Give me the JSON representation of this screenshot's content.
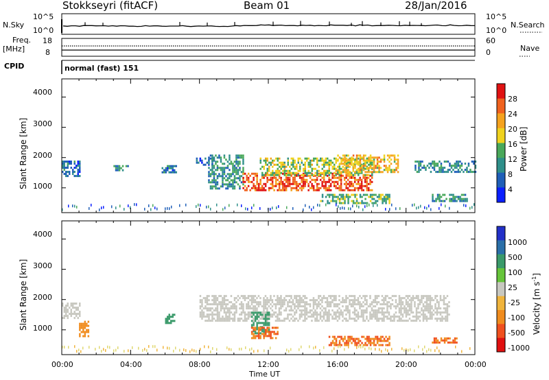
{
  "header": {
    "station": "Stokkseyri (fitACF)",
    "beam": "Beam 01",
    "date": "28/Jan/2016"
  },
  "strips": {
    "nsky_label": "N.Sky",
    "nsky_ticks": [
      "10^5",
      "10^0"
    ],
    "nsearch_label": "N.Search",
    "nsearch_ticks": [
      "10^5",
      "10^0"
    ],
    "freq_label_1": "Freq.",
    "freq_label_2": "[MHz]",
    "freq_ticks": [
      "18",
      "8"
    ],
    "nave_label": "Nave",
    "nave_ticks": [
      "60",
      "0"
    ],
    "cpid_label": "CPID",
    "cpid_value": "normal (fast) 151"
  },
  "axes": {
    "xlabel": "Time UT",
    "xticks": [
      "00:00",
      "04:00",
      "08:00",
      "12:00",
      "16:00",
      "20:00",
      "00:00"
    ],
    "ylabel": "Slant Range [km]",
    "yticks": [
      "4000",
      "3000",
      "2000",
      "1000"
    ]
  },
  "colorbars": {
    "power": {
      "label": "Power [dB]",
      "ticks": [
        "28",
        "24",
        "20",
        "16",
        "12",
        "8",
        "4"
      ],
      "colors": [
        "#0a1fff",
        "#1f5fb8",
        "#2f8f8a",
        "#49a85a",
        "#f0d21e",
        "#f5a21e",
        "#f0621e",
        "#e01212"
      ]
    },
    "velocity": {
      "label": "Velocity [m s",
      "label_sup": "-1",
      "label_end": "]",
      "ticks": [
        "1000",
        "500",
        "100",
        "25",
        "-25",
        "-100",
        "-500",
        "-1000"
      ],
      "colors": [
        "#2230c8",
        "#2a6fa8",
        "#3a9a6a",
        "#66c43a",
        "#c8c8c0",
        "#f0b43c",
        "#f08c1e",
        "#f0501e",
        "#e01010"
      ]
    }
  },
  "chart_data": [
    {
      "type": "heatmap",
      "title": "Power",
      "xlabel": "Time UT",
      "ylabel": "Slant Range [km]",
      "xlim": [
        0,
        24
      ],
      "ylim": [
        180,
        4600
      ],
      "zlim": [
        0,
        30
      ],
      "regions": [
        {
          "t": [
            0.0,
            1.0
          ],
          "r": [
            1400,
            1900
          ],
          "power": 8
        },
        {
          "t": [
            3.0,
            3.8
          ],
          "r": [
            1550,
            1750
          ],
          "power": 9
        },
        {
          "t": [
            5.8,
            6.6
          ],
          "r": [
            1500,
            1750
          ],
          "power": 8
        },
        {
          "t": [
            7.8,
            8.8
          ],
          "r": [
            1750,
            2000
          ],
          "power": 7
        },
        {
          "t": [
            8.5,
            10.5
          ],
          "r": [
            1000,
            2100
          ],
          "power": 11
        },
        {
          "t": [
            10.5,
            18.0
          ],
          "r": [
            900,
            1500
          ],
          "power": 27
        },
        {
          "t": [
            11.5,
            18.0
          ],
          "r": [
            1400,
            2000
          ],
          "power": 16
        },
        {
          "t": [
            16.0,
            19.5
          ],
          "r": [
            1500,
            2100
          ],
          "power": 20
        },
        {
          "t": [
            15.0,
            19.0
          ],
          "r": [
            500,
            800
          ],
          "power": 13
        },
        {
          "t": [
            20.5,
            24.0
          ],
          "r": [
            1500,
            1900
          ],
          "power": 10
        },
        {
          "t": [
            21.5,
            23.5
          ],
          "r": [
            550,
            800
          ],
          "power": 11
        }
      ]
    },
    {
      "type": "heatmap",
      "title": "Velocity",
      "xlabel": "Time UT",
      "ylabel": "Slant Range [km]",
      "xlim": [
        0,
        24
      ],
      "ylim": [
        180,
        4600
      ],
      "zlim": [
        -1000,
        1000
      ],
      "regions": [
        {
          "t": [
            0.0,
            1.0
          ],
          "r": [
            1400,
            1900
          ],
          "velocity": 0
        },
        {
          "t": [
            1.0,
            1.5
          ],
          "r": [
            800,
            1300
          ],
          "velocity": -100
        },
        {
          "t": [
            6.0,
            6.5
          ],
          "r": [
            1200,
            1600
          ],
          "velocity": 100
        },
        {
          "t": [
            8.0,
            22.5
          ],
          "r": [
            1300,
            2150
          ],
          "velocity": 0
        },
        {
          "t": [
            11.0,
            12.0
          ],
          "r": [
            900,
            1600
          ],
          "velocity": 100
        },
        {
          "t": [
            11.0,
            12.5
          ],
          "r": [
            750,
            1100
          ],
          "velocity": -300
        },
        {
          "t": [
            15.5,
            19.0
          ],
          "r": [
            500,
            800
          ],
          "velocity": -300
        },
        {
          "t": [
            21.5,
            23.0
          ],
          "r": [
            550,
            750
          ],
          "velocity": -300
        }
      ]
    }
  ]
}
